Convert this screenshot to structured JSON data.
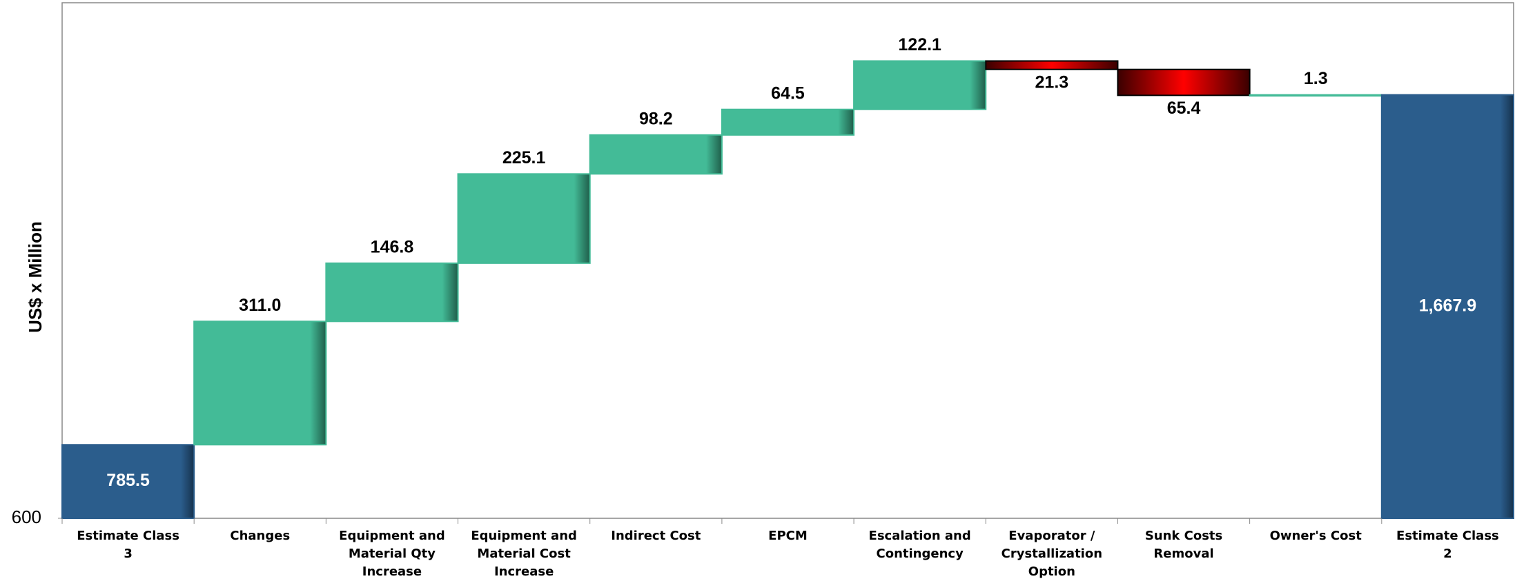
{
  "chart_data": {
    "type": "waterfall",
    "y_label": "US$ x Million",
    "categories": [
      "Estimate Class 3",
      "Changes",
      "Equipment and Material Qty Increase",
      "Equipment and Material Cost Increase",
      "Indirect Cost",
      "EPCM",
      "Escalation and Contingency",
      "Evaporator / Crystallization Option",
      "Sunk Costs Removal",
      "Owner's Cost",
      "Estimate Class 2"
    ],
    "values": [
      785.5,
      311.0,
      146.8,
      225.1,
      98.2,
      64.5,
      122.1,
      -21.3,
      -65.4,
      1.3,
      1667.9
    ],
    "value_labels": [
      "785.5",
      "311.0",
      "146.8",
      "225.1",
      "98.2",
      "64.5",
      "122.1",
      "21.3",
      "65.4",
      "1.3",
      "1,667.9"
    ],
    "is_total": [
      true,
      false,
      false,
      false,
      false,
      false,
      false,
      false,
      false,
      false,
      true
    ],
    "total_color": "#2b5d8c",
    "increase_color": "#43bb97",
    "decrease_color": "#ff0000",
    "ylim": [
      600,
      1900
    ],
    "yticks": [
      600
    ]
  }
}
